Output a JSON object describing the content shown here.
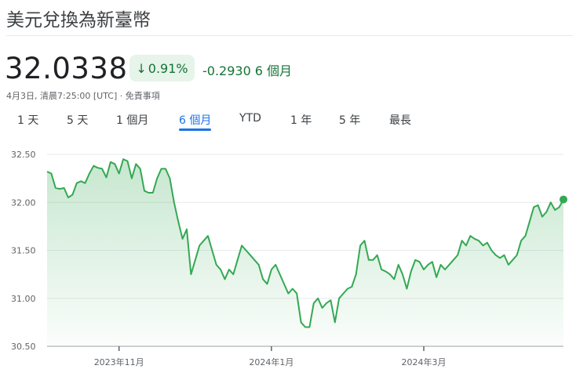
{
  "title": "美元兌換為新臺幣",
  "price": "32.0338",
  "change_percent": "0.91%",
  "change_arrow": "↓",
  "change_value": "-0.2930",
  "change_period": "6 個月",
  "meta": "4月3日, 清晨7:25:00 [UTC] · 免責事項",
  "tabs": [
    {
      "label": "1 天"
    },
    {
      "label": "5 天"
    },
    {
      "label": "1 個月"
    },
    {
      "label": "6 個月",
      "active": true
    },
    {
      "label": "YTD"
    },
    {
      "label": "1 年"
    },
    {
      "label": "5 年"
    },
    {
      "label": "最長"
    }
  ],
  "colors": {
    "line": "#34a853",
    "positive": "#137333",
    "accent": "#1a73e8"
  },
  "chart_data": {
    "type": "area",
    "ylim": [
      30.5,
      32.5
    ],
    "yticks": [
      "32.50",
      "32.00",
      "31.50",
      "31.00",
      "30.50"
    ],
    "xticks": [
      {
        "label": "2023年11月",
        "index": 17
      },
      {
        "label": "2024年1月",
        "index": 53
      },
      {
        "label": "2024年3月",
        "index": 89
      }
    ],
    "values": [
      32.32,
      32.3,
      32.15,
      32.14,
      32.15,
      32.05,
      32.08,
      32.2,
      32.22,
      32.2,
      32.3,
      32.38,
      32.36,
      32.35,
      32.26,
      32.42,
      32.4,
      32.3,
      32.45,
      32.43,
      32.25,
      32.4,
      32.35,
      32.12,
      32.1,
      32.1,
      32.25,
      32.35,
      32.35,
      32.25,
      32.0,
      31.8,
      31.62,
      31.72,
      31.25,
      31.4,
      31.55,
      31.6,
      31.65,
      31.5,
      31.35,
      31.3,
      31.2,
      31.3,
      31.25,
      31.4,
      31.55,
      31.5,
      31.45,
      31.4,
      31.35,
      31.2,
      31.15,
      31.3,
      31.35,
      31.25,
      31.15,
      31.05,
      31.1,
      31.05,
      30.75,
      30.7,
      30.7,
      30.95,
      31.0,
      30.9,
      30.95,
      30.98,
      30.75,
      31.0,
      31.05,
      31.1,
      31.12,
      31.25,
      31.55,
      31.6,
      31.4,
      31.4,
      31.45,
      31.3,
      31.28,
      31.25,
      31.2,
      31.35,
      31.25,
      31.1,
      31.28,
      31.4,
      31.38,
      31.3,
      31.35,
      31.38,
      31.22,
      31.35,
      31.3,
      31.35,
      31.4,
      31.45,
      31.6,
      31.55,
      31.65,
      31.62,
      31.6,
      31.55,
      31.58,
      31.5,
      31.45,
      31.42,
      31.45,
      31.35,
      31.4,
      31.45,
      31.6,
      31.65,
      31.8,
      31.95,
      31.97,
      31.85,
      31.9,
      32.0,
      31.92,
      31.95,
      32.03
    ]
  }
}
